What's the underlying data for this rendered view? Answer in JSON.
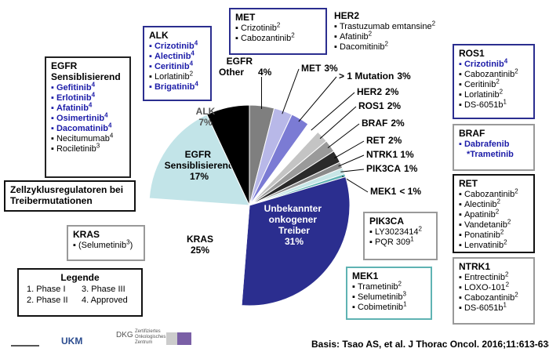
{
  "chart_data": {
    "type": "pie",
    "categories": [
      "EGFR Other",
      "MET",
      "> 1 Mutation",
      "HER2",
      "ROS1",
      "BRAF",
      "RET",
      "NTRK1",
      "PIK3CA",
      "MEK1",
      "Unbekannter onkogener Treiber",
      "KRAS",
      "EGFR Sensiblisierend",
      "ALK"
    ],
    "values": [
      4,
      3,
      3,
      2,
      2,
      2,
      2,
      1,
      1,
      0.5,
      31,
      25,
      17,
      7
    ],
    "value_labels": [
      "4%",
      "3%",
      "3%",
      "2%",
      "2%",
      "2%",
      "2%",
      "1%",
      "1%",
      "< 1%",
      "31%",
      "25%",
      "17%",
      "7%"
    ],
    "colors": [
      "#7f7f7f",
      "#b8b8e8",
      "#7b7bd4",
      "#ffffff",
      "#c4c4c4",
      "#9a9a9a",
      "#2a2a2a",
      "#8a8a8a",
      "#c7e6e6",
      "#5fb3b3",
      "#2b2e8f",
      "#ffffff",
      "#c2e4e8",
      "#000000"
    ]
  },
  "boxes": [
    {
      "title": "MET",
      "border_color": "#2b2e8f",
      "items": [
        {
          "text": "Crizotinib",
          "sup": "2"
        },
        {
          "text": "Cabozantinib",
          "sup": "2"
        }
      ]
    },
    {
      "title": "HER2",
      "items": [
        {
          "text": "Trastuzumab emtansine",
          "sup": "2"
        },
        {
          "text": "Afatinib",
          "sup": "2"
        },
        {
          "text": "Dacomitinib",
          "sup": "2"
        }
      ]
    },
    {
      "title": "ALK",
      "border_color": "#2b2e8f",
      "items": [
        {
          "text": "Crizotinib",
          "sup": "4",
          "color": "#1c1ca8"
        },
        {
          "text": "Alectinib",
          "sup": "4",
          "color": "#1c1ca8"
        },
        {
          "text": "Ceritinib",
          "sup": "4",
          "color": "#1c1ca8"
        },
        {
          "text": "Lorlatinib",
          "sup": "2"
        },
        {
          "text": "Brigatinib",
          "sup": "4",
          "color": "#1c1ca8"
        }
      ]
    },
    {
      "title": "EGFR Sensiblisierend",
      "border_color": "#222222",
      "items": [
        {
          "text": "Gefitinib",
          "sup": "4",
          "color": "#1c1ca8"
        },
        {
          "text": "Erlotinib",
          "sup": "4",
          "color": "#1c1ca8"
        },
        {
          "text": "Afatinib",
          "sup": "4",
          "color": "#1c1ca8"
        },
        {
          "text": "Osimertinib",
          "sup": "4",
          "color": "#1c1ca8"
        },
        {
          "text": "Dacomatinib",
          "sup": "4",
          "color": "#1c1ca8"
        },
        {
          "text": "Necitumumab",
          "sup": "4"
        },
        {
          "text": "Rociletinib",
          "sup": "3"
        }
      ]
    },
    {
      "title": "ROS1",
      "border_color": "#2b2e8f",
      "items": [
        {
          "text": "Crizotinib",
          "sup": "4",
          "color": "#1c1ca8"
        },
        {
          "text": "Cabozantinib",
          "sup": "2"
        },
        {
          "text": "Ceritinib",
          "sup": "2"
        },
        {
          "text": "Lorlatinib",
          "sup": "2"
        },
        {
          "text": "DS-6051b",
          "sup": "1"
        }
      ]
    },
    {
      "title": "BRAF",
      "border_color": "#999999",
      "items": [
        {
          "text": "Dabrafenib",
          "color": "#1c1ca8"
        },
        {
          "text": "*Trametinib",
          "color": "#1c1ca8"
        }
      ]
    },
    {
      "title": "RET",
      "border_color": "#111111",
      "items": [
        {
          "text": "Cabozantinib",
          "sup": "2"
        },
        {
          "text": "Alectinib",
          "sup": "2"
        },
        {
          "text": "Apatinib",
          "sup": "2"
        },
        {
          "text": "Vandetanib",
          "sup": "2"
        },
        {
          "text": "Ponatinib",
          "sup": "2"
        },
        {
          "text": "Lenvatinib",
          "sup": "2"
        }
      ]
    },
    {
      "title": "NTRK1",
      "border_color": "#999999",
      "items": [
        {
          "text": "Entrectinib",
          "sup": "2"
        },
        {
          "text": "LOXO-101",
          "sup": "2"
        },
        {
          "text": "Cabozantinib",
          "sup": "2"
        },
        {
          "text": "DS-6051b",
          "sup": "1"
        }
      ]
    },
    {
      "title": "PIK3CA",
      "border_color": "#999999",
      "items": [
        {
          "text": "LY3023414",
          "sup": "2"
        },
        {
          "text": "PQR 309",
          "sup": "1"
        }
      ]
    },
    {
      "title": "MEK1",
      "border_color": "#5fb3b3",
      "items": [
        {
          "text": "Trametinib",
          "sup": "2"
        },
        {
          "text": "Selumetinib",
          "sup": "3"
        },
        {
          "text": "Cobimetinib",
          "sup": "1"
        }
      ]
    },
    {
      "title": "KRAS",
      "border_color": "#999999",
      "items": [
        {
          "text": "(Selumetinib",
          "sup": "3",
          "suffix": ")"
        }
      ]
    },
    {
      "title": "Zellzyklusregulatoren bei Treibermutationen",
      "border_color": "#111111",
      "items": []
    }
  ],
  "legend": {
    "title": "Legende",
    "items": [
      "1. Phase I",
      "3. Phase III",
      "2. Phase II",
      "4. Approved"
    ]
  },
  "footer": {
    "citation": "Basis: Tsao AS, et al. J Thorac Oncol. 2016;11:613-638",
    "logos": [
      "UKM",
      "DKG",
      "Zertifiziertes Onkologisches Zentrum"
    ]
  }
}
